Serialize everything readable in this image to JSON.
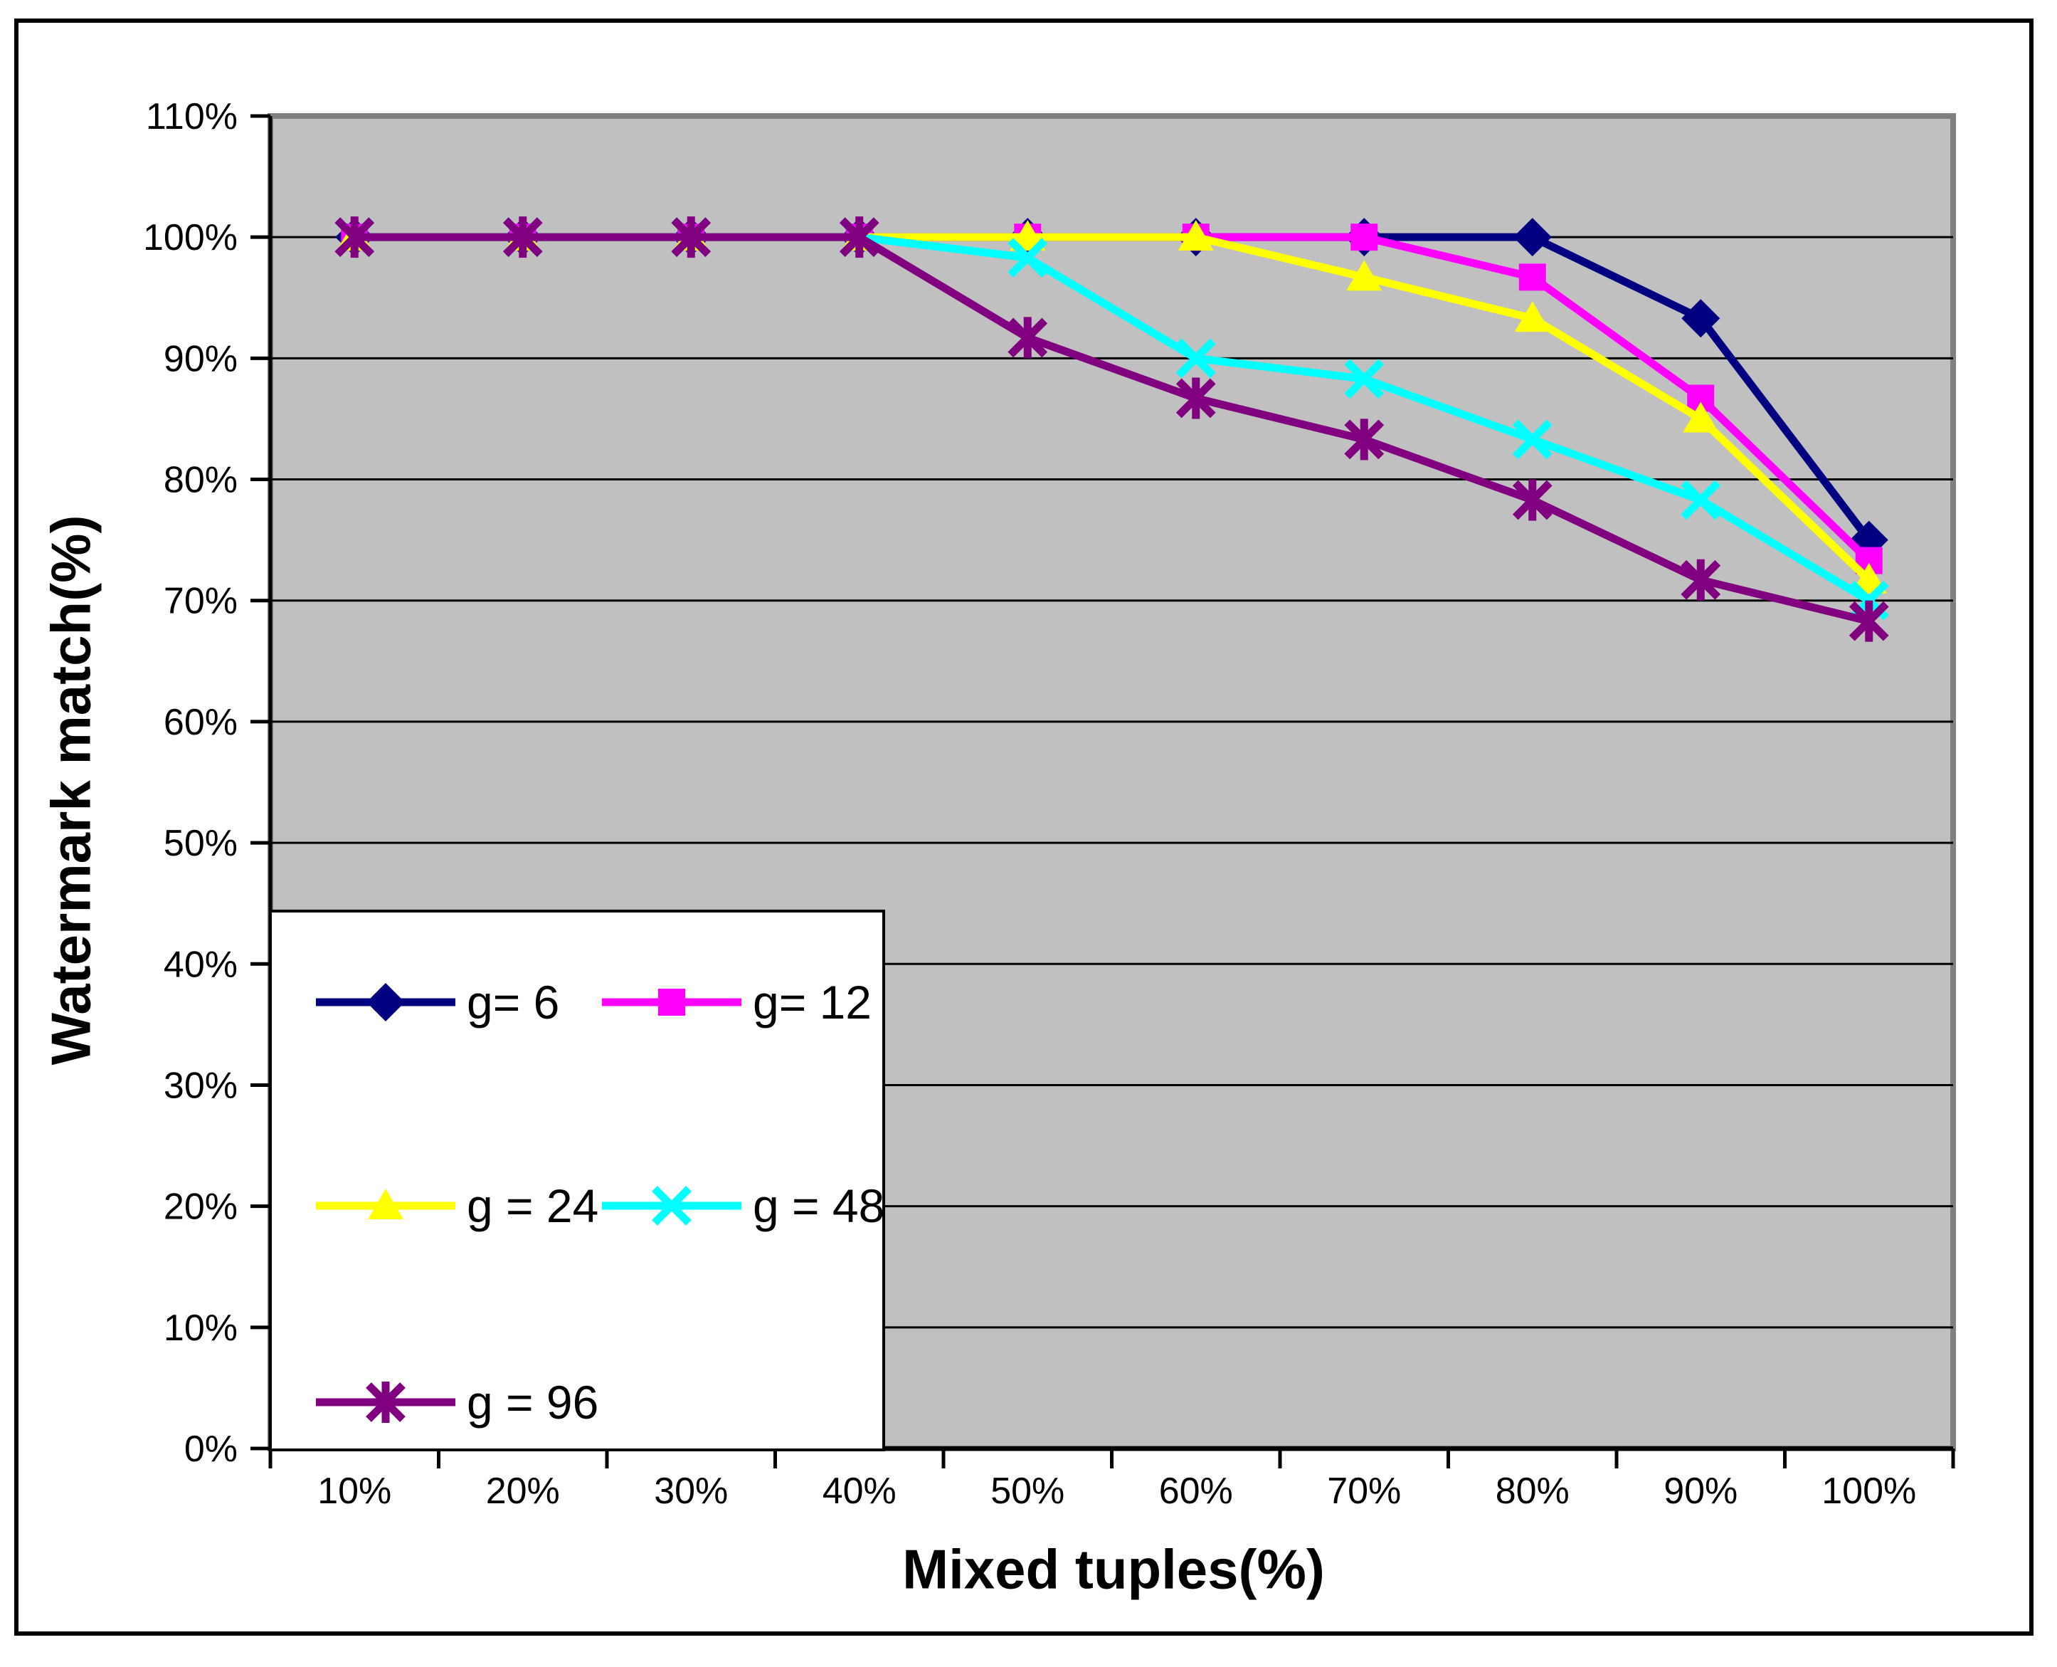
{
  "figure": {
    "background": "#FFFFFF",
    "border_color": "#000000"
  },
  "chart_data": {
    "type": "line",
    "title": "",
    "xlabel": "Mixed tuples(%)",
    "ylabel": "Watermark match(%)",
    "categories": [
      "10%",
      "20%",
      "30%",
      "40%",
      "50%",
      "60%",
      "70%",
      "80%",
      "90%",
      "100%"
    ],
    "y_axis": {
      "min": 0,
      "max": 110,
      "step": 10,
      "tick_labels": [
        "0%",
        "10%",
        "20%",
        "30%",
        "40%",
        "50%",
        "60%",
        "70%",
        "80%",
        "90%",
        "100%",
        "110%"
      ]
    },
    "grid": "horizontal",
    "legend_position": "inside bottom-left",
    "colors": {
      "plot_bg": "#C0C0C0",
      "plot_border": "#808080",
      "grid": "#000000",
      "axis": "#000000",
      "text": "#000000",
      "legend_bg": "#FFFFFF",
      "legend_border": "#000000"
    },
    "series": [
      {
        "id": "g6",
        "name": "g= 6",
        "color": "#000080",
        "marker": "diamond",
        "values": [
          100,
          100,
          100,
          100,
          100,
          100,
          100,
          100,
          93.3,
          75
        ]
      },
      {
        "id": "g12",
        "name": "g= 12",
        "color": "#FF00FF",
        "marker": "square",
        "values": [
          100,
          100,
          100,
          100,
          100,
          100,
          100,
          96.7,
          86.7,
          73.3
        ]
      },
      {
        "id": "g24",
        "name": "g = 24",
        "color": "#FFFF00",
        "marker": "triangle",
        "values": [
          100,
          100,
          100,
          100,
          100,
          100,
          96.7,
          93.3,
          85,
          71.7
        ]
      },
      {
        "id": "g48",
        "name": "g = 48",
        "color": "#00FFFF",
        "marker": "x",
        "values": [
          100,
          100,
          100,
          100,
          98.3,
          90,
          88.3,
          83.3,
          78.3,
          70
        ]
      },
      {
        "id": "g96",
        "name": "g = 96",
        "color": "#800080",
        "marker": "asterisk",
        "values": [
          100,
          100,
          100,
          100,
          91.7,
          86.7,
          83.3,
          78.3,
          71.7,
          68.3
        ]
      }
    ]
  }
}
